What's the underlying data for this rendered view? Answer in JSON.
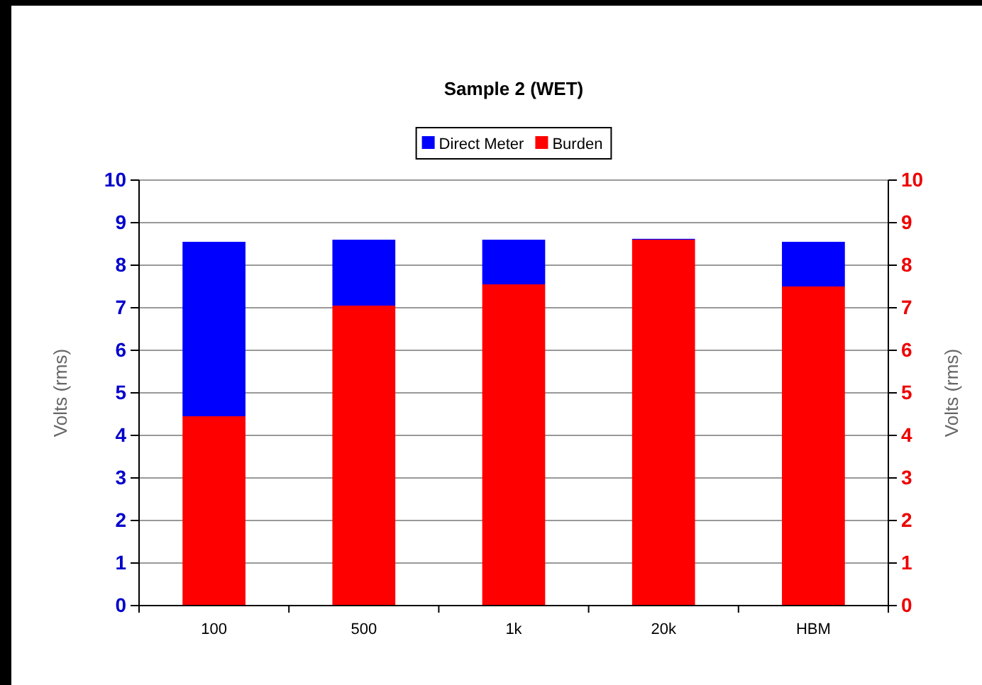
{
  "chart_data": {
    "type": "bar",
    "title": "Sample 2 (WET)",
    "ylabel": "Volts (rms)",
    "y2label": "Volts (rms)",
    "categories": [
      "100",
      "500",
      "1k",
      "20k",
      "HBM"
    ],
    "stacked": true,
    "series": [
      {
        "name": "Burden",
        "color": "#ff0000",
        "values": [
          4.45,
          7.05,
          7.55,
          8.6,
          7.5
        ]
      },
      {
        "name": "Direct Meter",
        "color": "#0000ff",
        "values": [
          4.1,
          1.55,
          1.05,
          0.02,
          1.05
        ]
      }
    ],
    "ylim": [
      0,
      10
    ],
    "yticks": [
      0,
      1,
      2,
      3,
      4,
      5,
      6,
      7,
      8,
      9,
      10
    ],
    "y2lim": [
      0,
      10
    ],
    "y2ticks": [
      0,
      1,
      2,
      3,
      4,
      5,
      6,
      7,
      8,
      9,
      10
    ],
    "grid": "y",
    "legend": "top"
  }
}
